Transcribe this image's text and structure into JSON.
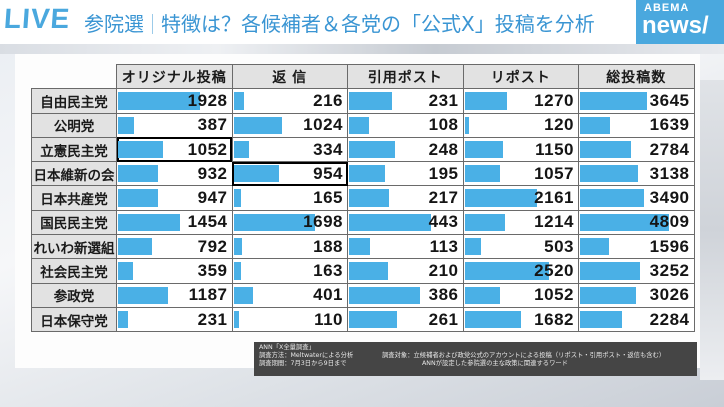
{
  "header": {
    "live_label": "LIVE",
    "topic": "参院選",
    "headline": "特徴は？各候補者＆各党の「公式X」投稿を分析",
    "logo_top": "ABEMA",
    "logo_bottom": "news/"
  },
  "table": {
    "columns": [
      "オリジナル投稿",
      "返 信",
      "引用ポスト",
      "リポスト",
      "総投稿数"
    ],
    "rows": [
      {
        "party": "自由民主党",
        "values": [
          1928,
          216,
          231,
          1270,
          3645
        ]
      },
      {
        "party": "公明党",
        "values": [
          387,
          1024,
          108,
          120,
          1639
        ]
      },
      {
        "party": "立憲民主党",
        "values": [
          1052,
          334,
          248,
          1150,
          2784
        ]
      },
      {
        "party": "日本維新の会",
        "values": [
          932,
          954,
          195,
          1057,
          3138
        ]
      },
      {
        "party": "日本共産党",
        "values": [
          947,
          165,
          217,
          2161,
          3490
        ]
      },
      {
        "party": "国民民主党",
        "values": [
          1454,
          1698,
          443,
          1214,
          4809
        ]
      },
      {
        "party": "れいわ新選組",
        "values": [
          792,
          188,
          113,
          503,
          1596
        ]
      },
      {
        "party": "社会民主党",
        "values": [
          359,
          163,
          210,
          2520,
          3252
        ]
      },
      {
        "party": "参政党",
        "values": [
          1187,
          401,
          386,
          1052,
          3026
        ]
      },
      {
        "party": "日本保守党",
        "values": [
          231,
          110,
          261,
          1682,
          2284
        ]
      }
    ],
    "highlighted_cells": [
      {
        "row": 2,
        "col": 0
      },
      {
        "row": 3,
        "col": 1
      }
    ],
    "bar_color": "#4ab0e6",
    "bar_max": [
      2700,
      2400,
      620,
      3400,
      6200
    ]
  },
  "note": {
    "source": "ANN「X全量調査」",
    "method": "調査方法：Meltwaterによる分析",
    "period": "調査期間：7月3日から9日まで",
    "target": "調査対象：立候補者および政党公式のアカウントによる投稿（リポスト・引用ポスト・返信も含む）",
    "target2": "ANNが設定した参院選の主な政策に関連するワード"
  },
  "chart_data": {
    "type": "table",
    "title": "特徴は？各候補者＆各党の「公式X」投稿を分析",
    "categories": [
      "自由民主党",
      "公明党",
      "立憲民主党",
      "日本維新の会",
      "日本共産党",
      "国民民主党",
      "れいわ新選組",
      "社会民主党",
      "参政党",
      "日本保守党"
    ],
    "series": [
      {
        "name": "オリジナル投稿",
        "values": [
          1928,
          387,
          1052,
          932,
          947,
          1454,
          792,
          359,
          1187,
          231
        ]
      },
      {
        "name": "返信",
        "values": [
          216,
          1024,
          334,
          954,
          165,
          1698,
          188,
          163,
          401,
          110
        ]
      },
      {
        "name": "引用ポスト",
        "values": [
          231,
          108,
          248,
          195,
          217,
          443,
          113,
          210,
          386,
          261
        ]
      },
      {
        "name": "リポスト",
        "values": [
          1270,
          120,
          1150,
          1057,
          2161,
          1214,
          503,
          2520,
          1052,
          1682
        ]
      },
      {
        "name": "総投稿数",
        "values": [
          3645,
          1639,
          2784,
          3138,
          3490,
          4809,
          1596,
          3252,
          3026,
          2284
        ]
      }
    ],
    "source": "ANN「X全量調査」"
  }
}
